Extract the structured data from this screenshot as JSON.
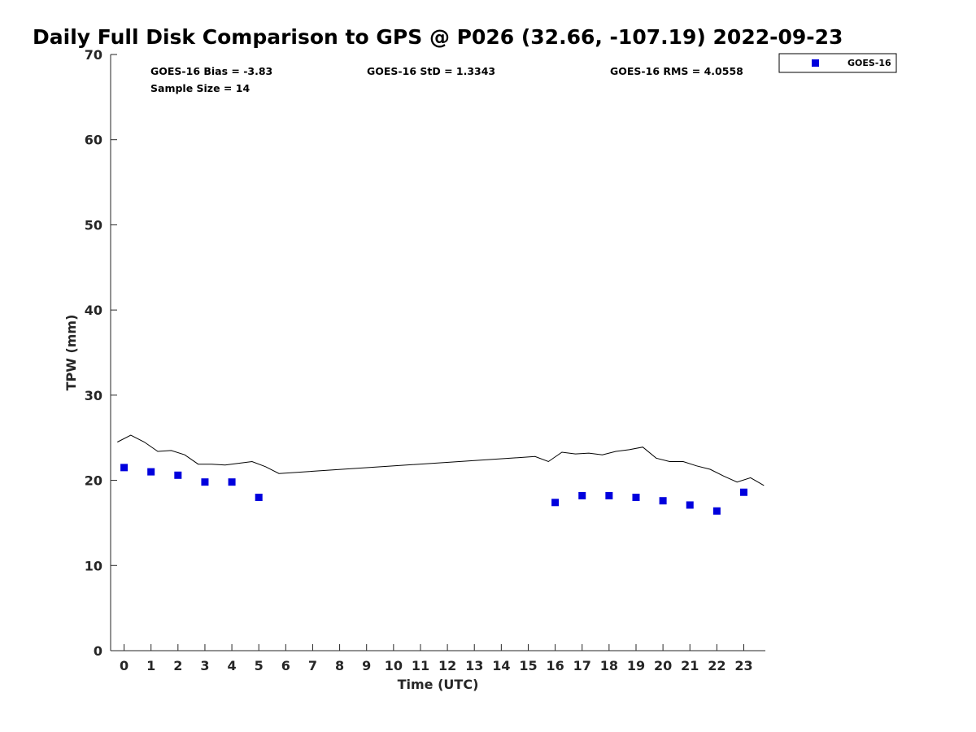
{
  "chart_data": {
    "type": "scatter",
    "title": "Daily Full Disk Comparison to GPS @ P026 (32.66, -107.19) 2022-09-23",
    "xlabel": "Time (UTC)",
    "ylabel": "TPW (mm)",
    "xlim": [
      -0.5,
      23.8
    ],
    "ylim": [
      0,
      70
    ],
    "xticks": [
      0,
      1,
      2,
      3,
      4,
      5,
      6,
      7,
      8,
      9,
      10,
      11,
      12,
      13,
      14,
      15,
      16,
      17,
      18,
      19,
      20,
      21,
      22,
      23
    ],
    "yticks": [
      0,
      10,
      20,
      30,
      40,
      50,
      60,
      70
    ],
    "grid": false,
    "legend_position": "top-right",
    "stats": {
      "bias": "GOES-16 Bias = -3.83",
      "std": "GOES-16 StD = 1.3343",
      "rms": "GOES-16 RMS = 4.0558",
      "sample": "Sample Size = 14"
    },
    "series": [
      {
        "name": "GOES-16",
        "kind": "scatter",
        "color": "#0000dd",
        "marker": "square",
        "x": [
          0,
          1,
          2,
          3,
          4,
          5,
          16,
          17,
          18,
          19,
          20,
          21,
          22,
          23
        ],
        "y": [
          21.5,
          21.0,
          20.6,
          19.8,
          19.8,
          18.0,
          17.4,
          18.2,
          18.2,
          18.0,
          17.6,
          17.1,
          16.4,
          18.6
        ]
      },
      {
        "kind": "line",
        "color": "#000000",
        "x": [
          -0.25,
          0.25,
          0.75,
          1.25,
          1.75,
          2.25,
          2.75,
          3.25,
          3.75,
          4.25,
          4.75,
          5.25,
          5.75,
          15.25,
          15.75,
          16.25,
          16.75,
          17.25,
          17.75,
          18.25,
          18.75,
          19.25,
          19.75,
          20.25,
          20.75,
          21.25,
          21.75,
          22.25,
          22.75,
          23.25,
          23.75
        ],
        "y": [
          24.5,
          25.3,
          24.5,
          23.4,
          23.5,
          23.0,
          21.9,
          21.9,
          21.8,
          22.0,
          22.2,
          21.6,
          20.8,
          22.8,
          22.2,
          23.3,
          23.1,
          23.2,
          23.0,
          23.4,
          23.6,
          23.9,
          22.6,
          22.2,
          22.2,
          21.7,
          21.3,
          20.5,
          19.8,
          20.3,
          19.4
        ]
      }
    ]
  }
}
